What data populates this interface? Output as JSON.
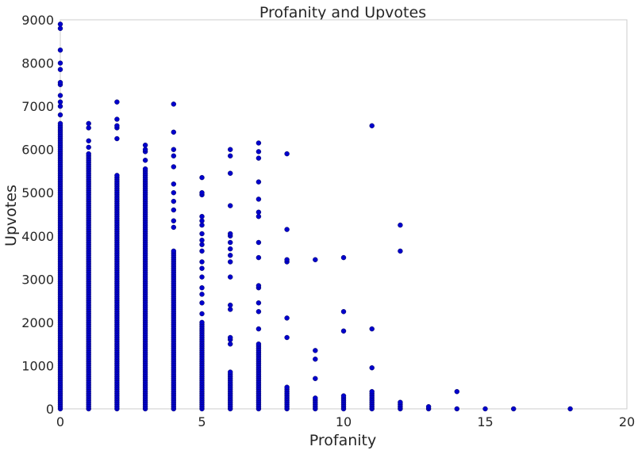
{
  "chart_data": {
    "type": "scatter",
    "title": "Profanity and Upvotes",
    "xlabel": "Profanity",
    "ylabel": "Upvotes",
    "xlim": [
      0,
      20
    ],
    "ylim": [
      0,
      9000
    ],
    "x_ticks": [
      "0",
      "5",
      "10",
      "15",
      "20"
    ],
    "y_ticks": [
      "0",
      "1000",
      "2000",
      "3000",
      "4000",
      "5000",
      "6000",
      "7000",
      "8000",
      "9000"
    ],
    "grid": false,
    "marker_color": "#0000CC",
    "columns": [
      {
        "x": 0,
        "max": 6600,
        "outliers": [
          6800,
          7000,
          7100,
          7250,
          7500,
          7550,
          7850,
          8000,
          8300,
          8800,
          8900
        ]
      },
      {
        "x": 1,
        "max": 5900,
        "outliers": [
          6050,
          6200,
          6500,
          6600
        ]
      },
      {
        "x": 2,
        "max": 5400,
        "outliers": [
          6250,
          6500,
          6550,
          6700,
          7100
        ]
      },
      {
        "x": 3,
        "max": 5500,
        "outliers": [
          5550,
          5750,
          5950,
          6000,
          6100
        ]
      },
      {
        "x": 4,
        "max": 3650,
        "outliers": [
          4200,
          4350,
          4600,
          4800,
          5000,
          5200,
          5600,
          5850,
          6000,
          6400,
          7050
        ]
      },
      {
        "x": 5,
        "max": 2000,
        "outliers": [
          2200,
          2450,
          2650,
          2800,
          3050,
          3250,
          3400,
          3650,
          3800,
          3900,
          4050,
          4250,
          4350,
          4450,
          4950,
          5000,
          5350
        ]
      },
      {
        "x": 6,
        "max": 850,
        "outliers": [
          1500,
          1600,
          1650,
          2300,
          2400,
          3050,
          3400,
          3550,
          3700,
          3850,
          4000,
          4050,
          4700,
          5450,
          5850,
          6000
        ]
      },
      {
        "x": 7,
        "max": 1500,
        "outliers": [
          1850,
          2250,
          2450,
          2800,
          2850,
          3500,
          3850,
          4450,
          4550,
          4850,
          5250,
          5800,
          5950,
          6150
        ]
      },
      {
        "x": 8,
        "max": 500,
        "outliers": [
          1650,
          2100,
          3400,
          3450,
          4150,
          5900
        ]
      },
      {
        "x": 9,
        "max": 250,
        "outliers": [
          700,
          1150,
          1350,
          3450
        ]
      },
      {
        "x": 10,
        "max": 300,
        "outliers": [
          1800,
          2250,
          3500
        ]
      },
      {
        "x": 11,
        "max": 400,
        "outliers": [
          950,
          1850,
          6550
        ]
      },
      {
        "x": 12,
        "max": 150,
        "outliers": [
          3650,
          4250
        ]
      },
      {
        "x": 13,
        "max": 50,
        "outliers": []
      },
      {
        "x": 14,
        "max": 10,
        "outliers": [
          400
        ]
      },
      {
        "x": 15,
        "max": 10,
        "outliers": []
      },
      {
        "x": 16,
        "max": 10,
        "outliers": []
      },
      {
        "x": 18,
        "max": 30,
        "outliers": []
      }
    ]
  }
}
